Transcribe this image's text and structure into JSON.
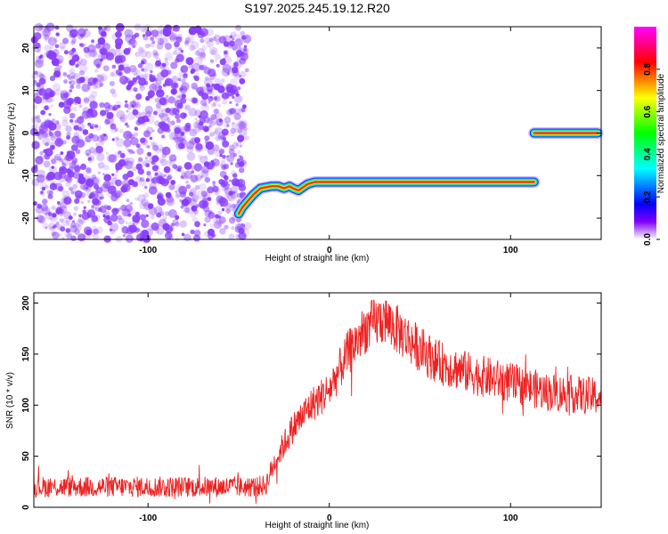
{
  "title": "S197.2025.245.19.12.R20",
  "colors": {
    "trace": "#ee2222",
    "speckle": "#8a3dff",
    "axis": "#000000"
  },
  "colormap": [
    "#ff00ff",
    "#ff0080",
    "#ff0000",
    "#ff8000",
    "#ffff00",
    "#80ff00",
    "#00ff00",
    "#00ff80",
    "#00ffff",
    "#0080ff",
    "#0000ff",
    "#8000ff",
    "#ffffff"
  ],
  "chart_data": [
    {
      "type": "heatmap",
      "name": "spectrogram",
      "title": "S197.2025.245.19.12.R20",
      "xlabel": "Height of straight line (km)",
      "ylabel": "Frequency (Hz)",
      "xlim": [
        -163,
        150
      ],
      "ylim": [
        -25,
        25
      ],
      "xticks": [
        -100,
        0,
        100
      ],
      "yticks": [
        -20,
        -10,
        0,
        10,
        20
      ],
      "noise_region_x": [
        -163,
        -45
      ],
      "track_segments": [
        {
          "x": [
            -50,
            -48,
            -45,
            -42,
            -38,
            -32,
            -28,
            -25,
            -22,
            -20,
            -17,
            -12,
            -8,
            -4,
            0,
            20,
            40,
            60,
            80,
            100,
            113
          ],
          "y": [
            -19,
            -17.5,
            -16,
            -14.5,
            -13,
            -12.5,
            -12.5,
            -13,
            -12.5,
            -13,
            -13.5,
            -12,
            -11.5,
            -11.5,
            -11.5,
            -11.5,
            -11.5,
            -11.5,
            -11.5,
            -11.5,
            -11.5
          ]
        },
        {
          "x": [
            113,
            120,
            130,
            140,
            148
          ],
          "y": [
            0,
            0,
            0,
            0,
            0
          ]
        }
      ],
      "colorbar": {
        "label": "Normalized spectral amplitude",
        "range": [
          0,
          1
        ],
        "ticks": [
          0.0,
          0.2,
          0.4,
          0.6,
          0.8
        ],
        "tick_labels": [
          "0.0",
          "0.2",
          "0.4",
          "0.6",
          "0.8"
        ]
      }
    },
    {
      "type": "line",
      "name": "snr",
      "xlabel": "Height of straight line (km)",
      "ylabel": "SNR (10 * v/v)",
      "xlim": [
        -163,
        150
      ],
      "ylim": [
        0,
        210
      ],
      "xticks": [
        -100,
        0,
        100
      ],
      "yticks": [
        0,
        50,
        100,
        150,
        200
      ],
      "envelope": {
        "x": [
          -163,
          -40,
          -35,
          -30,
          -20,
          -10,
          0,
          10,
          20,
          30,
          40,
          50,
          60,
          80,
          100,
          120,
          150
        ],
        "y": [
          20,
          20,
          22,
          45,
          78,
          100,
          115,
          150,
          175,
          185,
          170,
          155,
          142,
          130,
          122,
          113,
          108
        ]
      },
      "noise_amplitude": 14
    }
  ]
}
